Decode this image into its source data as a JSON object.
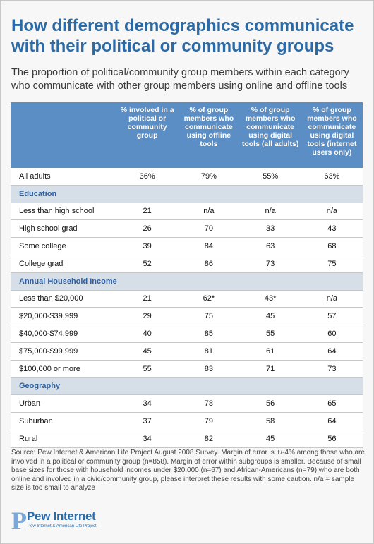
{
  "title": "How different demographics communicate with their political or community groups",
  "subtitle": "The proportion of political/community group members within each category who communicate with other group members using online and offline tools",
  "table": {
    "headers": [
      "",
      "% involved in a political or community group",
      "% of group members who communicate using offline tools",
      "% of group members who communicate using digital tools (all adults)",
      "% of group members who communicate using digital tools (internet users only)"
    ],
    "rows": [
      {
        "type": "data",
        "label": "All adults",
        "values": [
          "36%",
          "79%",
          "55%",
          "63%"
        ]
      },
      {
        "type": "section",
        "label": "Education"
      },
      {
        "type": "data",
        "label": "Less than high school",
        "values": [
          "21",
          "n/a",
          "n/a",
          "n/a"
        ]
      },
      {
        "type": "data",
        "label": "High school grad",
        "values": [
          "26",
          "70",
          "33",
          "43"
        ]
      },
      {
        "type": "data",
        "label": "Some college",
        "values": [
          "39",
          "84",
          "63",
          "68"
        ]
      },
      {
        "type": "data",
        "label": "College grad",
        "values": [
          "52",
          "86",
          "73",
          "75"
        ]
      },
      {
        "type": "section",
        "label": "Annual Household Income"
      },
      {
        "type": "data",
        "label": "Less than $20,000",
        "values": [
          "21",
          "62*",
          "43*",
          "n/a"
        ]
      },
      {
        "type": "data",
        "label": "$20,000-$39,999",
        "values": [
          "29",
          "75",
          "45",
          "57"
        ]
      },
      {
        "type": "data",
        "label": "$40,000-$74,999",
        "values": [
          "40",
          "85",
          "55",
          "60"
        ]
      },
      {
        "type": "data",
        "label": "$75,000-$99,999",
        "values": [
          "45",
          "81",
          "61",
          "64"
        ]
      },
      {
        "type": "data",
        "label": "$100,000 or more",
        "values": [
          "55",
          "83",
          "71",
          "73"
        ]
      },
      {
        "type": "section",
        "label": "Geography"
      },
      {
        "type": "data",
        "label": "Urban",
        "values": [
          "34",
          "78",
          "56",
          "65"
        ]
      },
      {
        "type": "data",
        "label": "Suburban",
        "values": [
          "37",
          "79",
          "58",
          "64"
        ]
      },
      {
        "type": "data",
        "label": "Rural",
        "values": [
          "34",
          "82",
          "45",
          "56"
        ]
      }
    ]
  },
  "source": "Source: Pew Internet & American Life Project August 2008 Survey. Margin of error is +/-4% among those who are involved in a political or community group (n=858). Margin of error within subgroups is smaller. Because of small base sizes for those with household incomes under $20,000 (n=67) and African-Americans (n=79) who are both online and involved in a civic/community group, please interpret these results with some caution. n/a = sample size is too small to analyze",
  "logo": {
    "mark": "P",
    "name": "Pew Internet",
    "tagline": "Pew Internet & American Life Project"
  },
  "colors": {
    "title": "#2c6aa6",
    "header_bg": "#5a8ec4",
    "section_bg": "#d6dfe8",
    "section_text": "#2c5fa0"
  }
}
